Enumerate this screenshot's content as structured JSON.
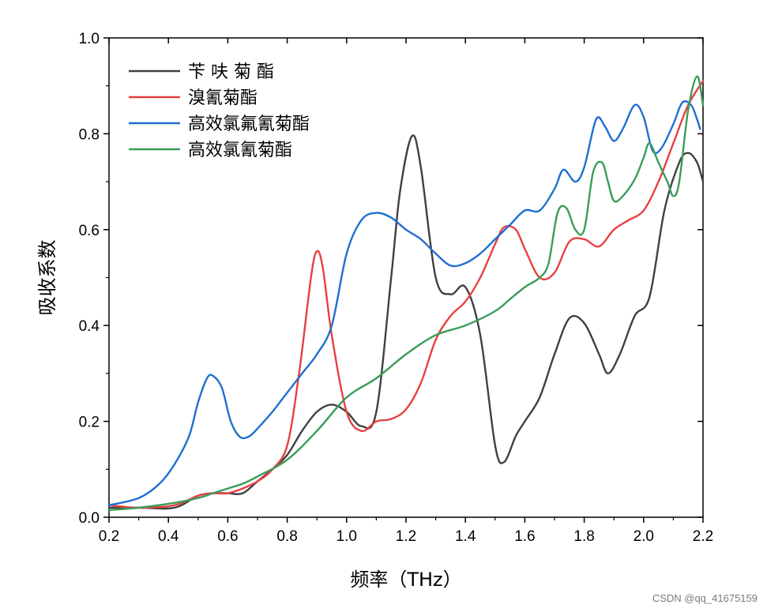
{
  "chart_data": {
    "type": "line",
    "title": "",
    "xlabel": "频率（THz）",
    "ylabel": "吸收系数",
    "xlim": [
      0.2,
      2.2
    ],
    "ylim": [
      0.0,
      1.0
    ],
    "xticks": [
      0.2,
      0.4,
      0.6,
      0.8,
      1.0,
      1.2,
      1.4,
      1.6,
      1.8,
      2.0,
      2.2
    ],
    "xtick_labels": [
      "0.2",
      "0.4",
      "0.6",
      "0.8",
      "1.0",
      "1.2",
      "1.4",
      "1.6",
      "1.8",
      "2.0",
      "2.2"
    ],
    "yticks": [
      0.0,
      0.2,
      0.4,
      0.6,
      0.8,
      1.0
    ],
    "ytick_labels": [
      "0.0",
      "0.2",
      "0.4",
      "0.6",
      "0.8",
      "1.0"
    ],
    "grid": false,
    "legend_position": "top-left",
    "series": [
      {
        "name": "苄 呋 菊 酯",
        "color": "#404040",
        "x": [
          0.2,
          0.3,
          0.42,
          0.5,
          0.55,
          0.6,
          0.65,
          0.7,
          0.75,
          0.8,
          0.85,
          0.9,
          0.95,
          1.0,
          1.05,
          1.1,
          1.15,
          1.18,
          1.22,
          1.25,
          1.3,
          1.35,
          1.4,
          1.45,
          1.5,
          1.53,
          1.57,
          1.6,
          1.65,
          1.7,
          1.75,
          1.8,
          1.85,
          1.88,
          1.92,
          1.97,
          2.02,
          2.07,
          2.12,
          2.15,
          2.18,
          2.2
        ],
        "y": [
          0.02,
          0.02,
          0.02,
          0.045,
          0.05,
          0.05,
          0.05,
          0.075,
          0.1,
          0.13,
          0.18,
          0.22,
          0.235,
          0.22,
          0.19,
          0.22,
          0.5,
          0.68,
          0.795,
          0.73,
          0.5,
          0.465,
          0.48,
          0.38,
          0.15,
          0.115,
          0.17,
          0.2,
          0.25,
          0.34,
          0.415,
          0.405,
          0.34,
          0.3,
          0.34,
          0.42,
          0.46,
          0.64,
          0.74,
          0.76,
          0.74,
          0.7
        ]
      },
      {
        "name": "溴氰菊酯",
        "color": "#e84040",
        "x": [
          0.2,
          0.3,
          0.42,
          0.5,
          0.55,
          0.6,
          0.65,
          0.7,
          0.75,
          0.8,
          0.84,
          0.88,
          0.9,
          0.92,
          0.95,
          1.0,
          1.05,
          1.1,
          1.15,
          1.2,
          1.25,
          1.3,
          1.35,
          1.4,
          1.45,
          1.5,
          1.53,
          1.57,
          1.6,
          1.65,
          1.7,
          1.75,
          1.8,
          1.85,
          1.9,
          1.95,
          2.0,
          2.05,
          2.1,
          2.15,
          2.2
        ],
        "y": [
          0.025,
          0.02,
          0.025,
          0.045,
          0.05,
          0.05,
          0.06,
          0.075,
          0.1,
          0.15,
          0.3,
          0.5,
          0.555,
          0.52,
          0.38,
          0.22,
          0.18,
          0.2,
          0.205,
          0.225,
          0.28,
          0.37,
          0.42,
          0.45,
          0.5,
          0.57,
          0.605,
          0.6,
          0.56,
          0.5,
          0.51,
          0.575,
          0.58,
          0.565,
          0.6,
          0.62,
          0.64,
          0.7,
          0.78,
          0.86,
          0.91
        ]
      },
      {
        "name": "高效氯氟氰菊酯",
        "color": "#1f6fd1",
        "x": [
          0.2,
          0.3,
          0.37,
          0.42,
          0.47,
          0.5,
          0.53,
          0.55,
          0.58,
          0.61,
          0.64,
          0.67,
          0.7,
          0.75,
          0.8,
          0.85,
          0.9,
          0.95,
          1.0,
          1.05,
          1.1,
          1.15,
          1.2,
          1.25,
          1.3,
          1.35,
          1.4,
          1.45,
          1.5,
          1.55,
          1.6,
          1.65,
          1.7,
          1.73,
          1.77,
          1.8,
          1.84,
          1.87,
          1.9,
          1.93,
          1.97,
          2.0,
          2.03,
          2.06,
          2.1,
          2.13,
          2.16,
          2.18,
          2.19
        ],
        "y": [
          0.025,
          0.04,
          0.07,
          0.11,
          0.17,
          0.24,
          0.29,
          0.295,
          0.27,
          0.2,
          0.168,
          0.168,
          0.185,
          0.22,
          0.26,
          0.3,
          0.34,
          0.4,
          0.55,
          0.62,
          0.635,
          0.625,
          0.6,
          0.58,
          0.55,
          0.525,
          0.53,
          0.55,
          0.58,
          0.61,
          0.64,
          0.64,
          0.685,
          0.725,
          0.7,
          0.73,
          0.83,
          0.815,
          0.785,
          0.81,
          0.86,
          0.835,
          0.765,
          0.77,
          0.82,
          0.865,
          0.86,
          0.83,
          0.81
        ]
      },
      {
        "name": "高效氯氰菊酯",
        "color": "#3a9c5a",
        "x": [
          0.2,
          0.3,
          0.42,
          0.5,
          0.55,
          0.6,
          0.65,
          0.7,
          0.8,
          0.9,
          1.0,
          1.1,
          1.2,
          1.3,
          1.4,
          1.5,
          1.55,
          1.6,
          1.65,
          1.68,
          1.71,
          1.74,
          1.77,
          1.8,
          1.83,
          1.86,
          1.88,
          1.9,
          1.93,
          1.97,
          2.0,
          2.02,
          2.05,
          2.08,
          2.1,
          2.12,
          2.15,
          2.18,
          2.2
        ],
        "y": [
          0.015,
          0.02,
          0.03,
          0.04,
          0.05,
          0.06,
          0.07,
          0.085,
          0.12,
          0.18,
          0.25,
          0.29,
          0.34,
          0.38,
          0.4,
          0.43,
          0.455,
          0.48,
          0.5,
          0.53,
          0.635,
          0.645,
          0.6,
          0.6,
          0.72,
          0.74,
          0.7,
          0.66,
          0.67,
          0.705,
          0.75,
          0.78,
          0.74,
          0.7,
          0.67,
          0.7,
          0.85,
          0.92,
          0.86
        ]
      }
    ]
  },
  "watermark": "CSDN @qq_41675159"
}
